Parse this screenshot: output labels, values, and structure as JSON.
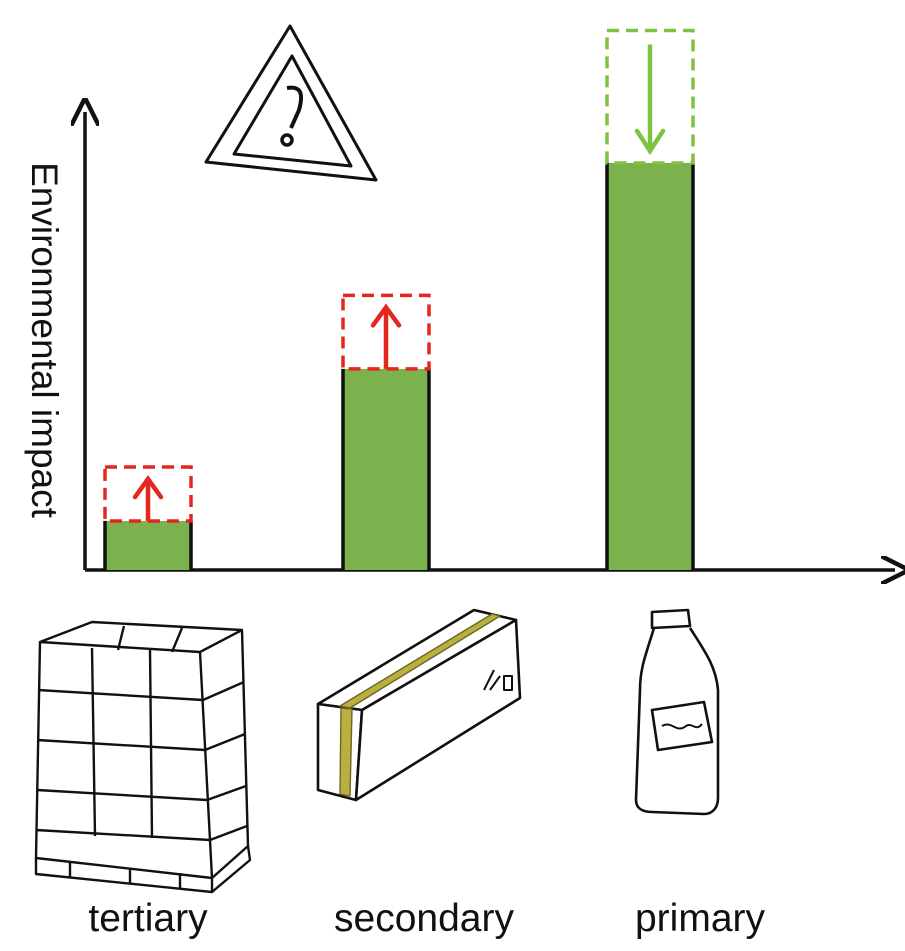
{
  "chart_data": {
    "type": "bar",
    "categories": [
      "tertiary",
      "secondary",
      "primary"
    ],
    "values": [
      1,
      4.1,
      8.3
    ],
    "potential_change": [
      {
        "category": "tertiary",
        "to": 2.1,
        "direction": "increase",
        "color": "#e5261f"
      },
      {
        "category": "secondary",
        "to": 5.6,
        "direction": "increase",
        "color": "#e5261f"
      },
      {
        "category": "primary",
        "to": 11.0,
        "direction": "decrease",
        "color": "#7dc242"
      }
    ],
    "xlabel": "",
    "ylabel": "Environmental impact",
    "ylim": [
      0,
      11.5
    ],
    "grid": false,
    "bar_color": "#7bb24e",
    "icons": [
      "warning-triangle-icon",
      "pallet-icon",
      "cardboard-box-icon",
      "bottle-icon"
    ]
  }
}
